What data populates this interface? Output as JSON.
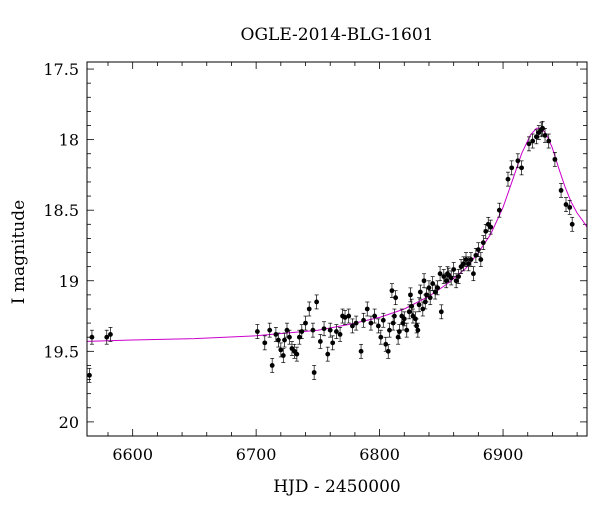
{
  "chart_data": {
    "type": "scatter",
    "title": "OGLE-2014-BLG-1601",
    "xlabel": "HJD - 2450000",
    "ylabel": "I magnitude",
    "xlim": [
      6563,
      6968
    ],
    "ylim": [
      20.1,
      17.45
    ],
    "y_inverted": true,
    "x_ticks": [
      6600,
      6700,
      6800,
      6900
    ],
    "y_ticks": [
      17.5,
      18,
      18.5,
      19,
      19.5,
      20
    ],
    "y_tick_labels": [
      "17.5",
      "18",
      "18.5",
      "19",
      "19.5",
      "20"
    ],
    "x_tick_labels": [
      "6600",
      "6700",
      "6800",
      "6900"
    ],
    "grid": false,
    "colors": {
      "points": "#000000",
      "model": "#cc00cc"
    },
    "series": [
      {
        "type": "scatter",
        "x": [
          6565,
          6567,
          6579,
          6582,
          6701,
          6707,
          6711,
          6713,
          6716,
          6718,
          6720,
          6722,
          6723,
          6725,
          6727,
          6729,
          6731,
          6733,
          6735,
          6737,
          6740,
          6743,
          6746,
          6747,
          6749,
          6752,
          6755,
          6758,
          6760,
          6762,
          6765,
          6768,
          6770,
          6772,
          6775,
          6778,
          6781,
          6785,
          6787,
          6790,
          6793,
          6796,
          6799,
          6801,
          6803,
          6805,
          6807,
          6808,
          6810,
          6811,
          6812,
          6813,
          6815,
          6816,
          6818,
          6819,
          6820,
          6822,
          6824,
          6825,
          6826,
          6827,
          6829,
          6830,
          6831,
          6832,
          6833,
          6835,
          6836,
          6837,
          6838,
          6840,
          6841,
          6843,
          6845,
          6847,
          6849,
          6850,
          6852,
          6854,
          6855,
          6856,
          6858,
          6860,
          6862,
          6864,
          6866,
          6868,
          6870,
          6872,
          6874,
          6876,
          6878,
          6880,
          6882,
          6884,
          6886,
          6888,
          6890,
          6897,
          6904,
          6907,
          6912,
          6915,
          6921,
          6924,
          6927,
          6929,
          6931,
          6932,
          6934,
          6937,
          6942,
          6947,
          6951,
          6954,
          6956
        ],
        "y": [
          19.67,
          19.4,
          19.4,
          19.38,
          19.36,
          19.44,
          19.35,
          19.6,
          19.38,
          19.42,
          19.49,
          19.53,
          19.42,
          19.35,
          19.4,
          19.48,
          19.5,
          19.52,
          19.4,
          19.36,
          19.3,
          19.2,
          19.35,
          19.65,
          19.15,
          19.43,
          19.34,
          19.52,
          19.35,
          19.44,
          19.36,
          19.38,
          19.25,
          19.26,
          19.25,
          19.32,
          19.3,
          19.5,
          19.28,
          19.2,
          19.3,
          19.25,
          19.32,
          19.4,
          19.28,
          19.45,
          19.5,
          19.35,
          19.07,
          19.3,
          19.25,
          19.12,
          19.4,
          19.36,
          19.25,
          19.3,
          19.27,
          19.35,
          19.22,
          19.1,
          19.18,
          19.25,
          19.27,
          19.32,
          19.35,
          19.17,
          19.08,
          19.2,
          19.0,
          19.15,
          19.1,
          19.05,
          19.12,
          19.02,
          19.08,
          19.05,
          18.95,
          19.22,
          18.97,
          19.0,
          18.95,
          18.96,
          18.98,
          18.92,
          19.0,
          18.97,
          18.9,
          18.88,
          18.85,
          18.88,
          18.85,
          18.95,
          18.82,
          18.78,
          18.85,
          18.73,
          18.65,
          18.6,
          18.62,
          18.5,
          18.28,
          18.2,
          18.15,
          18.2,
          18.03,
          18.01,
          17.98,
          17.95,
          17.93,
          17.92,
          17.97,
          18.01,
          18.14,
          18.36,
          18.46,
          18.48,
          18.6
        ]
      },
      {
        "type": "line",
        "name": "",
        "x": [
          6563,
          6600,
          6650,
          6700,
          6725,
          6750,
          6775,
          6800,
          6820,
          6840,
          6855,
          6870,
          6880,
          6890,
          6900,
          6908,
          6915,
          6922,
          6927,
          6931,
          6935,
          6940,
          6945,
          6950,
          6955,
          6960,
          6965,
          6968
        ],
        "y": [
          19.43,
          19.42,
          19.41,
          19.39,
          19.37,
          19.35,
          19.31,
          19.26,
          19.2,
          19.11,
          19.02,
          18.91,
          18.8,
          18.67,
          18.48,
          18.28,
          18.1,
          17.97,
          17.92,
          17.92,
          17.96,
          18.06,
          18.2,
          18.33,
          18.44,
          18.52,
          18.58,
          18.62
        ]
      }
    ]
  }
}
